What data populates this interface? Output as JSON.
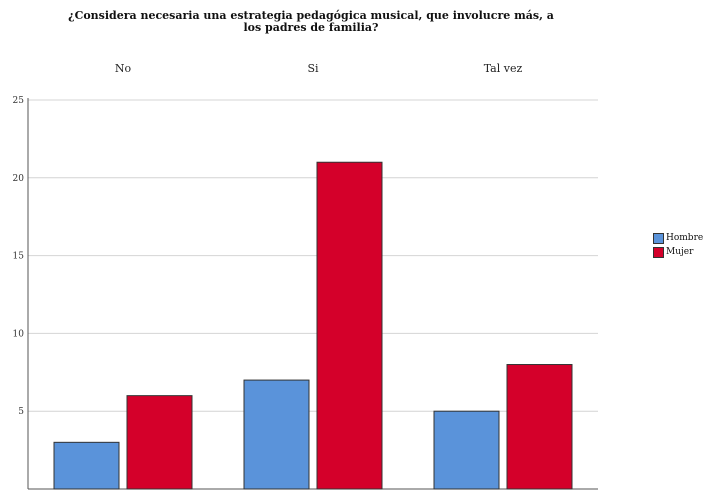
{
  "chart_data": {
    "type": "bar",
    "title_line1": "¿Considera necesaria una estrategia pedagógica musical, que involucre más,  a",
    "title_line2": "los padres de familia?",
    "categories": [
      "No",
      "Si",
      "Tal vez"
    ],
    "series": [
      {
        "name": "Hombre",
        "values": [
          3,
          7,
          5
        ],
        "color": "#5A93DA"
      },
      {
        "name": "Mujer",
        "values": [
          6,
          21,
          8
        ],
        "color": "#D4002A"
      }
    ],
    "ylim": [
      0,
      25
    ],
    "yticks": [
      5,
      10,
      15,
      20,
      25
    ],
    "grid": true,
    "legend_position": "right"
  }
}
